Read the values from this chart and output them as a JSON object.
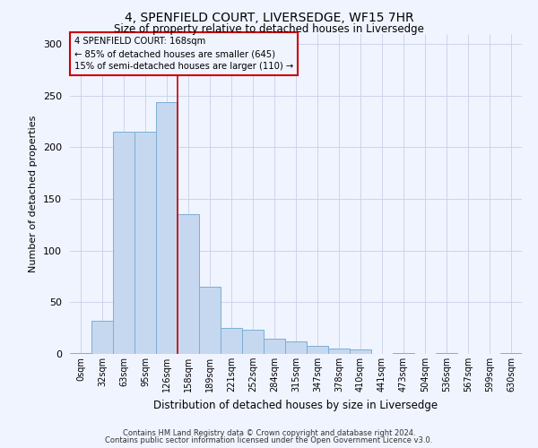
{
  "title": "4, SPENFIELD COURT, LIVERSEDGE, WF15 7HR",
  "subtitle": "Size of property relative to detached houses in Liversedge",
  "xlabel": "Distribution of detached houses by size in Liversedge",
  "ylabel": "Number of detached properties",
  "bar_color": "#c5d8ef",
  "bar_edge_color": "#7bafd4",
  "categories": [
    "0sqm",
    "32sqm",
    "63sqm",
    "95sqm",
    "126sqm",
    "158sqm",
    "189sqm",
    "221sqm",
    "252sqm",
    "284sqm",
    "315sqm",
    "347sqm",
    "378sqm",
    "410sqm",
    "441sqm",
    "473sqm",
    "504sqm",
    "536sqm",
    "567sqm",
    "599sqm",
    "630sqm"
  ],
  "values": [
    1,
    32,
    215,
    215,
    244,
    135,
    65,
    25,
    23,
    15,
    12,
    8,
    5,
    4,
    0,
    1,
    0,
    1,
    0,
    0,
    1
  ],
  "ylim": [
    0,
    310
  ],
  "yticks": [
    0,
    50,
    100,
    150,
    200,
    250,
    300
  ],
  "vline_x": 4.5,
  "marker_label": "4 SPENFIELD COURT: 168sqm",
  "marker_line1": "← 85% of detached houses are smaller (645)",
  "marker_line2": "15% of semi-detached houses are larger (110) →",
  "annotation_box_color": "#cc0000",
  "vline_color": "#cc0000",
  "footer_line1": "Contains HM Land Registry data © Crown copyright and database right 2024.",
  "footer_line2": "Contains public sector information licensed under the Open Government Licence v3.0.",
  "bg_color": "#f0f4ff",
  "grid_color": "#c8cfe8"
}
